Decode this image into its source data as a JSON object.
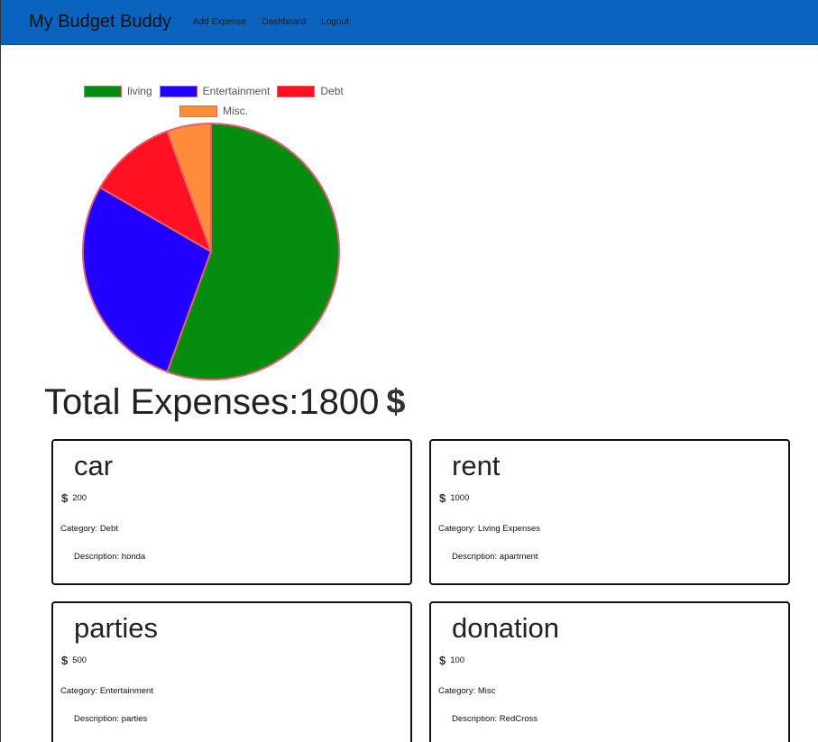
{
  "navbar": {
    "brand": "My Budget Buddy",
    "links": [
      "Add Expense",
      "Dashboard",
      "Logout"
    ]
  },
  "legend": {
    "row1": [
      {
        "label": "living",
        "color": "#058d10"
      },
      {
        "label": "Entertainment",
        "color": "#2200ff"
      },
      {
        "label": "Debt",
        "color": "#ff1122"
      }
    ],
    "row2": [
      {
        "label": "Misc.",
        "color": "#ff8c3a"
      }
    ]
  },
  "chart_data": {
    "type": "pie",
    "categories": [
      "living",
      "Entertainment",
      "Debt",
      "Misc."
    ],
    "values": [
      1000,
      500,
      200,
      100
    ],
    "colors": [
      "#058d10",
      "#2200ff",
      "#ff1122",
      "#ff8c3a"
    ],
    "border_color": "#e4606d",
    "legend_position": "top"
  },
  "total": {
    "label": "Total Expenses:",
    "value": "1800",
    "currency": "$"
  },
  "expenses": [
    {
      "title": "car",
      "currency": "$",
      "amount": "200",
      "category": "Category: Debt",
      "description": "Description: honda"
    },
    {
      "title": "rent",
      "currency": "$",
      "amount": "1000",
      "category": "Category: Living Expenses",
      "description": "Description: apartment"
    },
    {
      "title": "parties",
      "currency": "$",
      "amount": "500",
      "category": "Category: Entertainment",
      "description": "Description: parties"
    },
    {
      "title": "donation",
      "currency": "$",
      "amount": "100",
      "category": "Category: Misc",
      "description": "Description: RedCross"
    }
  ]
}
